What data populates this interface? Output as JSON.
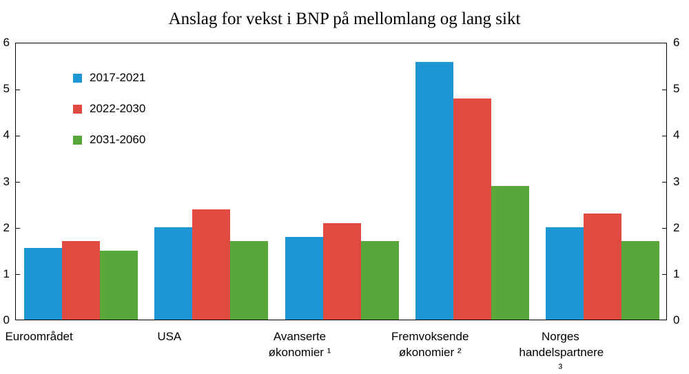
{
  "chart_data": {
    "type": "bar",
    "title": "Anslag for vekst i BNP på mellomlang og lang sikt",
    "categories": [
      "Euroområdet",
      "USA",
      "Avanserte økonomier ¹",
      "Fremvoksende\nøkonomier ²",
      "Norges\nhandelspartnere ³"
    ],
    "series": [
      {
        "name": "2017-2021",
        "color": "#1c97d4",
        "values": [
          1.55,
          2.0,
          1.8,
          5.6,
          2.0
        ]
      },
      {
        "name": "2022-2030",
        "color": "#df4a41",
        "values": [
          1.7,
          2.4,
          2.1,
          4.8,
          2.3
        ]
      },
      {
        "name": "2031-2060",
        "color": "#57a73a",
        "values": [
          1.5,
          1.7,
          1.7,
          2.9,
          1.7
        ]
      }
    ],
    "ylim": [
      0,
      6
    ],
    "ytick_step": 1,
    "grid": false,
    "legend_position": "top-left-inside",
    "y_axis_sides": "both",
    "xlabel": "",
    "ylabel": ""
  }
}
